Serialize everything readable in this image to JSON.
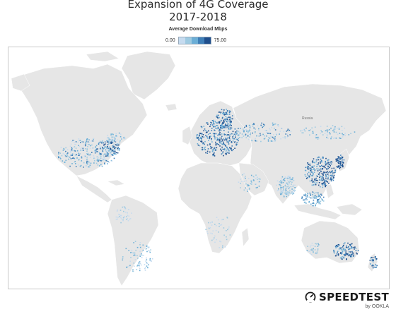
{
  "title_line1": "Expansion of 4G Coverage",
  "title_line2": "2017-2018",
  "legend": {
    "title": "Average Download Mbps",
    "min": "0.00",
    "max": "75.00",
    "colors": [
      "#c6dbef",
      "#9ecae1",
      "#6baed6",
      "#3f7fb8",
      "#1f4e8c"
    ]
  },
  "map": {
    "land_color": "#e6e6e6",
    "border_color": "#ffffff",
    "country_labels": [
      "Russia"
    ]
  },
  "brand": {
    "name": "SPEEDTEST",
    "byline": "by OOKLA"
  }
}
